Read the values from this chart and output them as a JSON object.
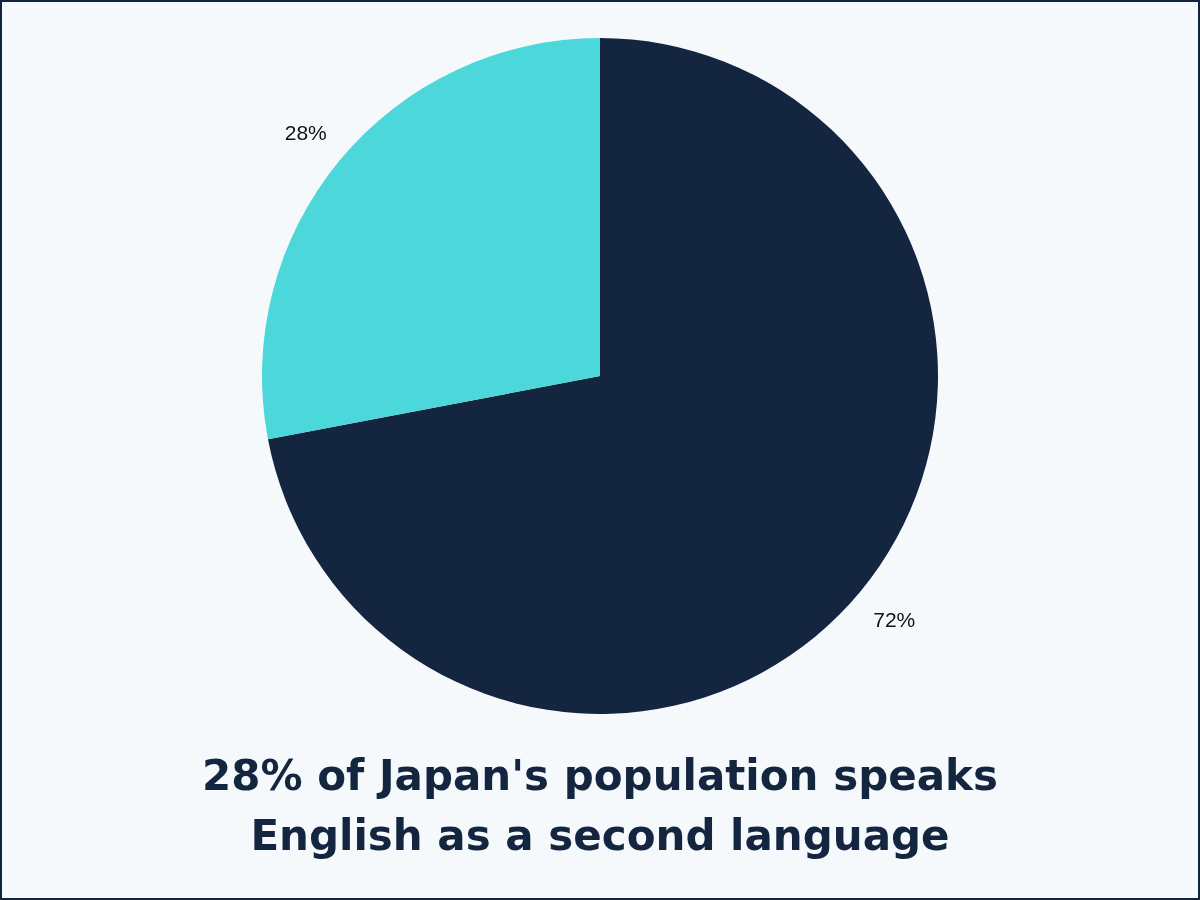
{
  "chart_data": {
    "type": "pie",
    "title": "28% of Japan's population speaks English as a second language",
    "categories": [
      null,
      null
    ],
    "values": [
      72,
      28
    ],
    "colors": [
      "#14263f",
      "#4cd7db"
    ],
    "value_labels": [
      "72%",
      "28%"
    ]
  }
}
